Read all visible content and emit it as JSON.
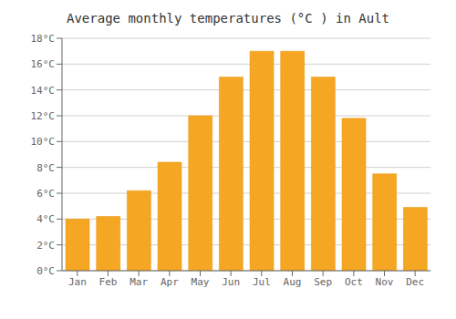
{
  "chart_data": {
    "type": "bar",
    "title": "Average monthly temperatures (°C ) in Ault",
    "categories": [
      "Jan",
      "Feb",
      "Mar",
      "Apr",
      "May",
      "Jun",
      "Jul",
      "Aug",
      "Sep",
      "Oct",
      "Nov",
      "Dec"
    ],
    "values": [
      4.0,
      4.2,
      6.2,
      8.4,
      12.0,
      15.0,
      17.0,
      17.0,
      15.0,
      11.8,
      7.5,
      4.9
    ],
    "color": "#F5A623",
    "ylim": [
      0,
      18
    ],
    "yticks": [
      {
        "value": 0,
        "label": "0°C"
      },
      {
        "value": 2,
        "label": "2°C"
      },
      {
        "value": 4,
        "label": "4°C"
      },
      {
        "value": 6,
        "label": "6°C"
      },
      {
        "value": 8,
        "label": "8°C"
      },
      {
        "value": 10,
        "label": "10°C"
      },
      {
        "value": 12,
        "label": "12°C"
      },
      {
        "value": 14,
        "label": "14°C"
      },
      {
        "value": 16,
        "label": "16°C"
      },
      {
        "value": 18,
        "label": "18°C"
      }
    ],
    "grid": true
  }
}
